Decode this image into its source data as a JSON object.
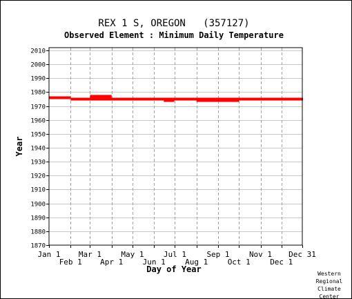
{
  "chart_data": {
    "type": "bar",
    "title": "REX 1 S, OREGON   (357127)",
    "subtitle": "Observed Element : Minimum Daily Temperature",
    "xlabel": "Day of Year",
    "ylabel": "Year",
    "xlim": [
      1,
      365
    ],
    "ylim": [
      1870,
      2012
    ],
    "y_ticks": [
      1870,
      1880,
      1890,
      1900,
      1910,
      1920,
      1930,
      1940,
      1950,
      1960,
      1970,
      1980,
      1990,
      2000,
      2010
    ],
    "x_ticks_top": [
      {
        "label": "Jan 1",
        "day": 1
      },
      {
        "label": "Mar 1",
        "day": 60
      },
      {
        "label": "May 1",
        "day": 121
      },
      {
        "label": "Jul 1",
        "day": 182
      },
      {
        "label": "Sep 1",
        "day": 244
      },
      {
        "label": "Nov 1",
        "day": 305
      },
      {
        "label": "Dec 31",
        "day": 365
      }
    ],
    "x_ticks_bottom": [
      {
        "label": "Feb 1",
        "day": 32
      },
      {
        "label": "Apr 1",
        "day": 91
      },
      {
        "label": "Jun 1",
        "day": 152
      },
      {
        "label": "Aug 1",
        "day": 213
      },
      {
        "label": "Oct 1",
        "day": 274
      },
      {
        "label": "Dec 1",
        "day": 335
      }
    ],
    "grid": true,
    "series_color": "#ff0000",
    "records": [
      {
        "year": 1976,
        "start_day": 1,
        "end_day": 31
      },
      {
        "year": 1975,
        "start_day": 32,
        "end_day": 365
      },
      {
        "year": 1977,
        "start_day": 60,
        "end_day": 90
      },
      {
        "year": 1974,
        "start_day": 166,
        "end_day": 180
      },
      {
        "year": 1974,
        "start_day": 213,
        "end_day": 273
      }
    ]
  },
  "credit": [
    "Western",
    "Regional",
    "Climate",
    "Center"
  ]
}
